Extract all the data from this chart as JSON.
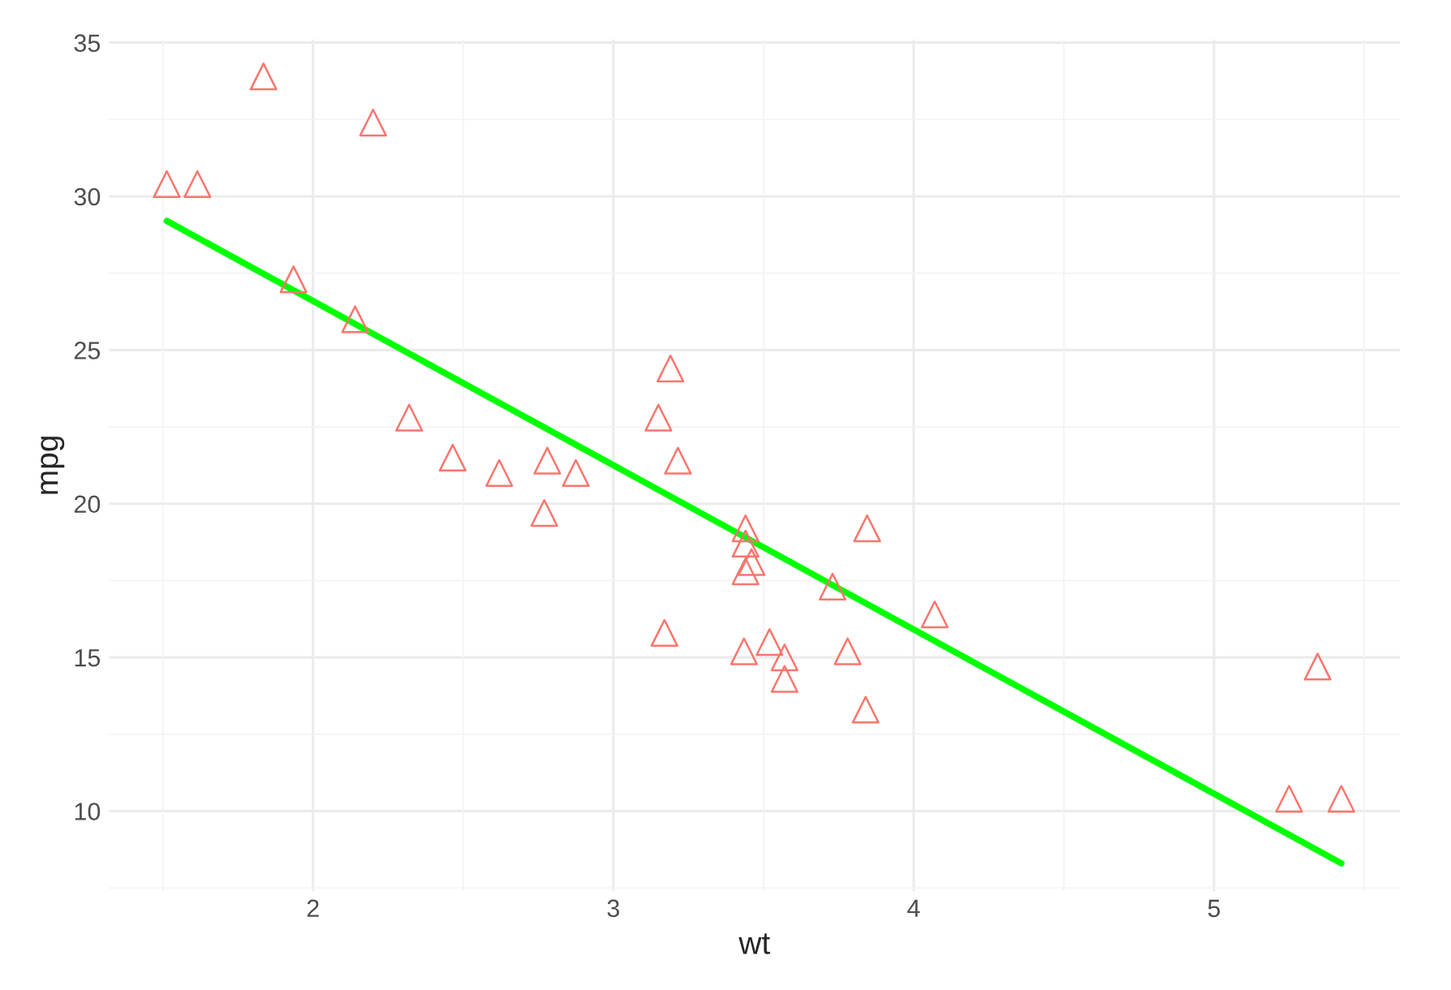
{
  "chart_data": {
    "type": "scatter",
    "xlabel": "wt",
    "ylabel": "mpg",
    "xlim": [
      1.32,
      5.62
    ],
    "ylim": [
      7.4,
      35.1
    ],
    "xticks": [
      2,
      3,
      4,
      5
    ],
    "yticks": [
      10,
      15,
      20,
      25,
      30,
      35
    ],
    "grid": true,
    "series": [
      {
        "marker": "triangle",
        "color": "#f8766d",
        "x": [
          2.62,
          2.875,
          2.32,
          3.215,
          3.44,
          3.46,
          3.57,
          3.19,
          3.15,
          3.44,
          3.44,
          4.07,
          3.73,
          3.78,
          5.25,
          5.424,
          5.345,
          2.2,
          1.615,
          1.835,
          2.465,
          3.52,
          3.435,
          3.84,
          3.845,
          1.935,
          2.14,
          1.513,
          3.17,
          2.77,
          3.57,
          2.78
        ],
        "values": [
          21.0,
          21.0,
          22.8,
          21.4,
          18.7,
          18.1,
          14.3,
          24.4,
          22.8,
          19.2,
          17.8,
          16.4,
          17.3,
          15.2,
          10.4,
          10.4,
          14.7,
          32.4,
          30.4,
          33.9,
          21.5,
          15.5,
          15.2,
          13.3,
          19.2,
          27.3,
          26.0,
          30.4,
          15.8,
          19.7,
          15.0,
          21.4
        ]
      },
      {
        "type": "line",
        "color": "#00ff00",
        "x": [
          1.513,
          5.424
        ],
        "values": [
          29.2,
          8.3
        ]
      }
    ]
  }
}
